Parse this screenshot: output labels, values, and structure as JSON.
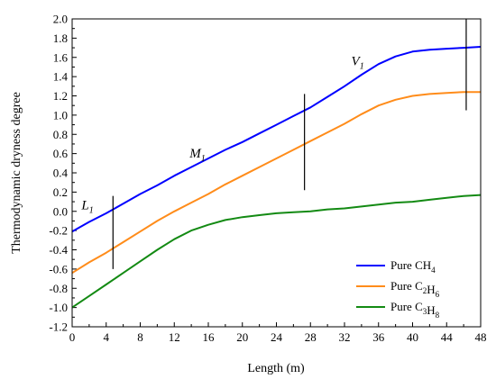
{
  "chart_data": {
    "type": "line",
    "xlabel": "Length (m)",
    "ylabel": "Thermodynamic dryness degree",
    "xlim": [
      0,
      48
    ],
    "ylim": [
      -1.2,
      2.0
    ],
    "xticks": [
      "0",
      "4",
      "8",
      "12",
      "16",
      "20",
      "24",
      "28",
      "32",
      "36",
      "40",
      "44",
      "48"
    ],
    "yticks": [
      "-1.2",
      "-1.0",
      "-0.8",
      "-0.6",
      "-0.4",
      "-0.2",
      "0.0",
      "0.2",
      "0.4",
      "0.6",
      "0.8",
      "1.0",
      "1.2",
      "1.4",
      "1.6",
      "1.8",
      "2.0"
    ],
    "grid": false,
    "legend_position": "bottom-right",
    "series": [
      {
        "name": "Pure CH",
        "sub": "4",
        "color": "#0000ff",
        "x": [
          0,
          2,
          4,
          6,
          8,
          10,
          12,
          14,
          16,
          18,
          20,
          22,
          24,
          26,
          28,
          30,
          32,
          34,
          36,
          38,
          40,
          42,
          44,
          46,
          48
        ],
        "y": [
          -0.21,
          -0.11,
          -0.02,
          0.08,
          0.18,
          0.27,
          0.37,
          0.46,
          0.55,
          0.64,
          0.72,
          0.81,
          0.9,
          0.99,
          1.08,
          1.19,
          1.3,
          1.42,
          1.53,
          1.61,
          1.66,
          1.68,
          1.69,
          1.7,
          1.71
        ]
      },
      {
        "name": "Pure C",
        "sub": "2",
        "name2": "H",
        "sub2": "6",
        "color": "#ff8c1a",
        "x": [
          0,
          2,
          4,
          6,
          8,
          10,
          12,
          14,
          16,
          18,
          20,
          22,
          24,
          26,
          28,
          30,
          32,
          34,
          36,
          38,
          40,
          42,
          44,
          46,
          48
        ],
        "y": [
          -0.64,
          -0.53,
          -0.43,
          -0.32,
          -0.21,
          -0.1,
          0.0,
          0.09,
          0.18,
          0.28,
          0.37,
          0.46,
          0.55,
          0.64,
          0.73,
          0.82,
          0.91,
          1.01,
          1.1,
          1.16,
          1.2,
          1.22,
          1.23,
          1.24,
          1.24
        ]
      },
      {
        "name": "Pure C",
        "sub": "3",
        "name2": "H",
        "sub2": "8",
        "color": "#138a13",
        "x": [
          0,
          2,
          4,
          6,
          8,
          10,
          12,
          14,
          16,
          18,
          20,
          22,
          24,
          26,
          28,
          30,
          32,
          34,
          36,
          38,
          40,
          42,
          44,
          46,
          48
        ],
        "y": [
          -1.0,
          -0.88,
          -0.76,
          -0.64,
          -0.52,
          -0.4,
          -0.29,
          -0.2,
          -0.14,
          -0.09,
          -0.06,
          -0.04,
          -0.02,
          -0.01,
          0.0,
          0.02,
          0.03,
          0.05,
          0.07,
          0.09,
          0.1,
          0.12,
          0.14,
          0.16,
          0.17
        ]
      }
    ],
    "markers": [
      {
        "x": 4.8,
        "y1": -0.6,
        "y2": 0.16
      },
      {
        "x": 27.3,
        "y1": 0.22,
        "y2": 1.22
      },
      {
        "x": 46.3,
        "y1": 1.05,
        "y2": 2.0
      }
    ],
    "annotations": [
      {
        "text": "L",
        "sub": "1",
        "x": 1.1,
        "y": 0.02
      },
      {
        "text": "M",
        "sub": "1",
        "x": 13.8,
        "y": 0.56
      },
      {
        "text": "V",
        "sub": "1",
        "x": 32.8,
        "y": 1.52
      }
    ]
  }
}
